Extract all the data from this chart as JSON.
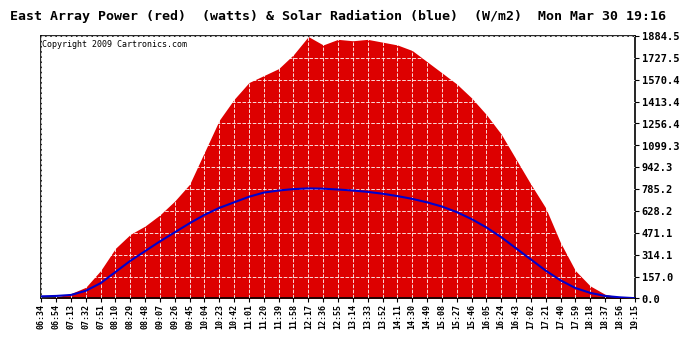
{
  "title": "East Array Power (red)  (watts) & Solar Radiation (blue)  (W/m2)  Mon Mar 30 19:16",
  "copyright": "Copyright 2009 Cartronics.com",
  "fig_bg_color": "#ffffff",
  "plot_bg_color": "#ffffff",
  "grid_color": "#aaaaaa",
  "title_color": "#000000",
  "red_color": "#dd0000",
  "blue_color": "#0000cc",
  "ymin": 0.0,
  "ymax": 1884.5,
  "yticks": [
    0.0,
    157.0,
    314.1,
    471.1,
    628.2,
    785.2,
    942.3,
    1099.3,
    1256.4,
    1413.4,
    1570.4,
    1727.5,
    1884.5
  ],
  "xtick_labels": [
    "06:34",
    "06:54",
    "07:13",
    "07:32",
    "07:51",
    "08:10",
    "08:29",
    "08:48",
    "09:07",
    "09:26",
    "09:45",
    "10:04",
    "10:23",
    "10:42",
    "11:01",
    "11:20",
    "11:39",
    "11:58",
    "12:17",
    "12:36",
    "12:55",
    "13:14",
    "13:33",
    "13:52",
    "14:11",
    "14:30",
    "14:49",
    "15:08",
    "15:27",
    "15:46",
    "16:05",
    "16:24",
    "16:43",
    "17:02",
    "17:21",
    "17:40",
    "17:59",
    "18:18",
    "18:37",
    "18:56",
    "19:15"
  ],
  "red_y": [
    0,
    10,
    35,
    80,
    200,
    360,
    460,
    520,
    600,
    700,
    820,
    1050,
    1280,
    1430,
    1550,
    1600,
    1650,
    1750,
    1880,
    1820,
    1860,
    1850,
    1860,
    1840,
    1820,
    1780,
    1700,
    1620,
    1540,
    1440,
    1320,
    1180,
    1000,
    820,
    650,
    400,
    200,
    90,
    30,
    8,
    0
  ],
  "blue_y": [
    15,
    18,
    25,
    55,
    110,
    190,
    270,
    340,
    410,
    475,
    540,
    600,
    650,
    690,
    730,
    760,
    775,
    785,
    790,
    788,
    782,
    775,
    765,
    752,
    735,
    715,
    690,
    660,
    620,
    570,
    510,
    440,
    360,
    280,
    200,
    130,
    75,
    40,
    18,
    8,
    2
  ]
}
